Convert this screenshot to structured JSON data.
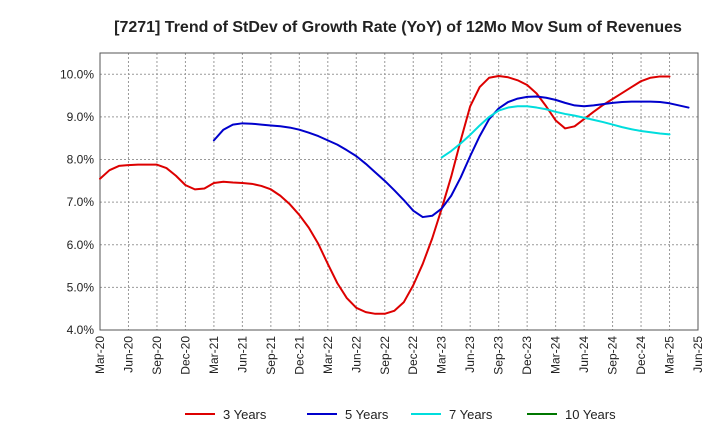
{
  "chart_data": {
    "type": "line",
    "title": "[7271]  Trend of StDev of Growth Rate (YoY) of 12Mo Mov Sum of Revenues",
    "xlabel": "",
    "ylabel": "",
    "ylim": [
      4.0,
      10.5
    ],
    "y_ticks": [
      4.0,
      5.0,
      6.0,
      7.0,
      8.0,
      9.0,
      10.0
    ],
    "y_tick_labels": [
      "4.0%",
      "5.0%",
      "6.0%",
      "7.0%",
      "8.0%",
      "9.0%",
      "10.0%"
    ],
    "grid": true,
    "legend_position": "bottom",
    "x_tick_labels": [
      "Mar-20",
      "Jun-20",
      "Sep-20",
      "Dec-20",
      "Mar-21",
      "Jun-21",
      "Sep-21",
      "Dec-21",
      "Mar-22",
      "Jun-22",
      "Sep-22",
      "Dec-22",
      "Mar-23",
      "Jun-23",
      "Sep-23",
      "Dec-23",
      "Mar-24",
      "Jun-24",
      "Sep-24",
      "Dec-24",
      "Mar-25",
      "Jun-25"
    ],
    "series": [
      {
        "name": "3 Years",
        "color": "#dd0000",
        "start_index": 0,
        "values": [
          7.55,
          7.75,
          7.85,
          7.87,
          7.88,
          7.88,
          7.88,
          7.8,
          7.62,
          7.4,
          7.3,
          7.32,
          7.45,
          7.48,
          7.46,
          7.45,
          7.43,
          7.38,
          7.3,
          7.15,
          6.95,
          6.7,
          6.4,
          6.02,
          5.55,
          5.1,
          4.75,
          4.52,
          4.42,
          4.38,
          4.38,
          4.45,
          4.65,
          5.05,
          5.55,
          6.15,
          6.85,
          7.6,
          8.45,
          9.25,
          9.7,
          9.92,
          9.96,
          9.93,
          9.86,
          9.75,
          9.55,
          9.25,
          8.92,
          8.73,
          8.78,
          8.95,
          9.12,
          9.28,
          9.42,
          9.56,
          9.7,
          9.84,
          9.92,
          9.95,
          9.95
        ]
      },
      {
        "name": "5 Years",
        "color": "#0000cc",
        "start_index": 12,
        "values": [
          8.45,
          8.7,
          8.82,
          8.85,
          8.84,
          8.82,
          8.8,
          8.78,
          8.75,
          8.7,
          8.63,
          8.55,
          8.45,
          8.35,
          8.22,
          8.08,
          7.9,
          7.7,
          7.5,
          7.28,
          7.05,
          6.8,
          6.65,
          6.68,
          6.85,
          7.15,
          7.58,
          8.08,
          8.55,
          8.95,
          9.2,
          9.35,
          9.43,
          9.47,
          9.48,
          9.45,
          9.4,
          9.33,
          9.27,
          9.25,
          9.27,
          9.3,
          9.33,
          9.35,
          9.36,
          9.36,
          9.36,
          9.35,
          9.32,
          9.27,
          9.22
        ]
      },
      {
        "name": "7 Years",
        "color": "#00dddd",
        "start_index": 36,
        "values": [
          8.05,
          8.2,
          8.38,
          8.58,
          8.8,
          9.0,
          9.15,
          9.22,
          9.25,
          9.25,
          9.22,
          9.18,
          9.12,
          9.07,
          9.03,
          8.98,
          8.93,
          8.88,
          8.82,
          8.76,
          8.71,
          8.67,
          8.64,
          8.61,
          8.59
        ]
      },
      {
        "name": "10 Years",
        "color": "#007700",
        "start_index": 0,
        "values": []
      }
    ]
  }
}
